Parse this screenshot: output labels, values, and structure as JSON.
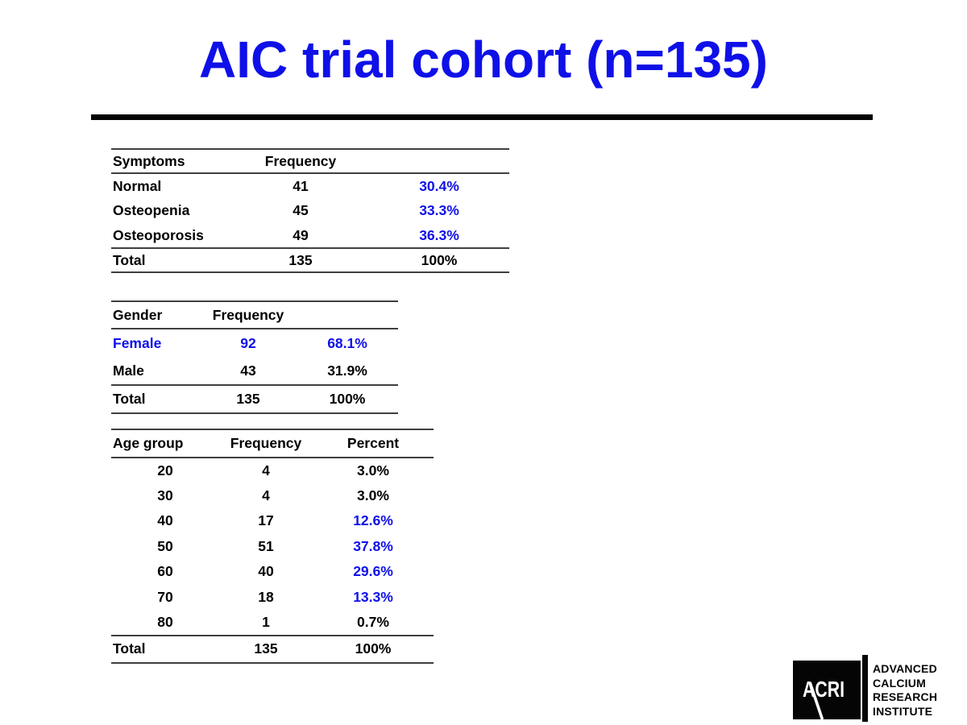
{
  "slide": {
    "title": "AIC trial cohort (n=135)",
    "accent_color": "#0f10e8",
    "background": "#ffffff"
  },
  "tables": [
    {
      "name": "symptoms-table",
      "headers": [
        {
          "text": "Symptoms"
        },
        {
          "text": "Frequency"
        },
        {
          "text": ""
        }
      ],
      "rows": [
        [
          {
            "text": "Normal"
          },
          {
            "text": "41"
          },
          {
            "text": "30.4%",
            "accent": true
          }
        ],
        [
          {
            "text": "Osteopenia"
          },
          {
            "text": "45"
          },
          {
            "text": "33.3%",
            "accent": true
          }
        ],
        [
          {
            "text": "Osteoporosis"
          },
          {
            "text": "49"
          },
          {
            "text": "36.3%",
            "accent": true
          }
        ]
      ],
      "total_row": [
        {
          "text": "Total"
        },
        {
          "text": "135"
        },
        {
          "text": "100%"
        }
      ]
    },
    {
      "name": "gender-table",
      "headers": [
        {
          "text": "Gender"
        },
        {
          "text": "Frequency"
        },
        {
          "text": ""
        }
      ],
      "rows": [
        [
          {
            "text": "Female",
            "accent": true
          },
          {
            "text": "92",
            "accent": true
          },
          {
            "text": "68.1%",
            "accent": true
          }
        ],
        [
          {
            "text": "Male"
          },
          {
            "text": "43"
          },
          {
            "text": "31.9%"
          }
        ]
      ],
      "total_row": [
        {
          "text": "Total"
        },
        {
          "text": "135"
        },
        {
          "text": "100%"
        }
      ]
    },
    {
      "name": "age-group-table",
      "headers": [
        {
          "text": "Age group"
        },
        {
          "text": "Frequency"
        },
        {
          "text": "Percent"
        }
      ],
      "rows": [
        [
          {
            "text": "20"
          },
          {
            "text": "4"
          },
          {
            "text": "3.0%"
          }
        ],
        [
          {
            "text": "30"
          },
          {
            "text": "4"
          },
          {
            "text": "3.0%"
          }
        ],
        [
          {
            "text": "40"
          },
          {
            "text": "17"
          },
          {
            "text": "12.6%",
            "accent": true
          }
        ],
        [
          {
            "text": "50"
          },
          {
            "text": "51"
          },
          {
            "text": "37.8%",
            "accent": true
          }
        ],
        [
          {
            "text": "60"
          },
          {
            "text": "40"
          },
          {
            "text": "29.6%",
            "accent": true
          }
        ],
        [
          {
            "text": "70"
          },
          {
            "text": "18"
          },
          {
            "text": "13.3%",
            "accent": true
          }
        ],
        [
          {
            "text": "80"
          },
          {
            "text": "1"
          },
          {
            "text": "0.7%"
          }
        ]
      ],
      "total_row": [
        {
          "text": "Total"
        },
        {
          "text": "135"
        },
        {
          "text": "100%"
        }
      ]
    }
  ],
  "logo": {
    "mark": "ACRI",
    "lines": [
      "ADVANCED",
      "CALCIUM",
      "RESEARCH",
      "INSTITUTE"
    ]
  }
}
